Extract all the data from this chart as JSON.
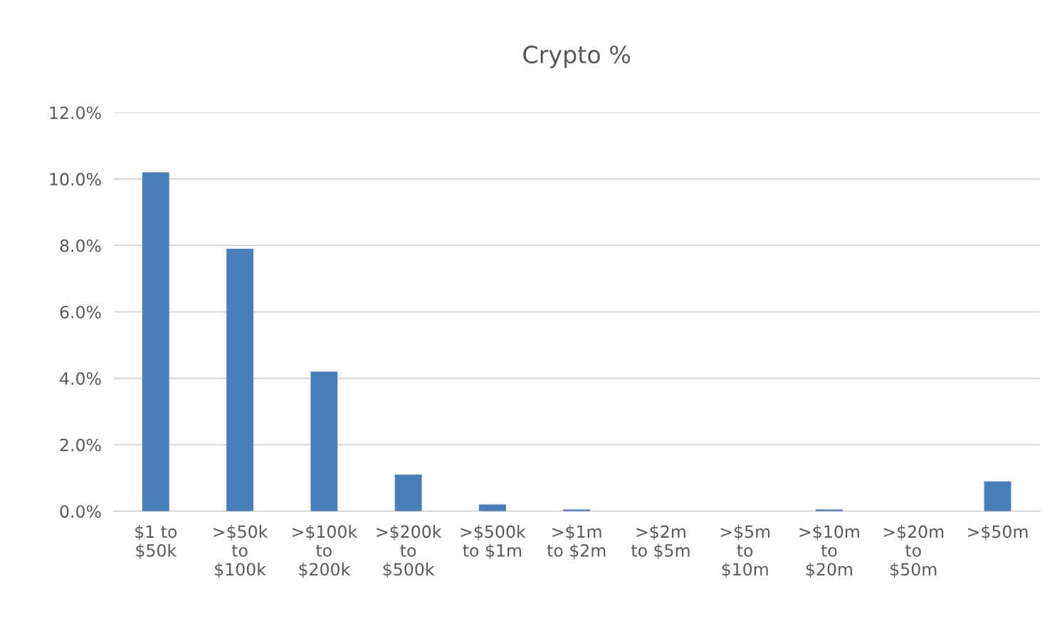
{
  "chart_data": {
    "type": "bar",
    "title": "Crypto %",
    "categories": [
      "$1 to\n$50k",
      ">$50k\nto\n$100k",
      ">$100k\nto\n$200k",
      ">$200k\nto\n$500k",
      ">$500k\nto $1m",
      ">$1m\nto $2m",
      ">$2m\nto $5m",
      ">$5m\nto\n$10m",
      ">$10m\nto\n$20m",
      ">$20m\nto\n$50m",
      ">$50m"
    ],
    "values": [
      10.2,
      7.9,
      4.2,
      1.1,
      0.2,
      0.05,
      0,
      0,
      0.05,
      0,
      0.9
    ],
    "color": "#4a7ebb",
    "ylim": [
      0,
      12
    ],
    "yticks": [
      {
        "value": 0,
        "label": "0.0%"
      },
      {
        "value": 2,
        "label": "2.0%"
      },
      {
        "value": 4,
        "label": "4.0%"
      },
      {
        "value": 6,
        "label": "6.0%"
      },
      {
        "value": 8,
        "label": "8.0%"
      },
      {
        "value": 10,
        "label": "10.0%"
      },
      {
        "value": 12,
        "label": "12.0%"
      }
    ],
    "grid": "y",
    "legend": false
  }
}
